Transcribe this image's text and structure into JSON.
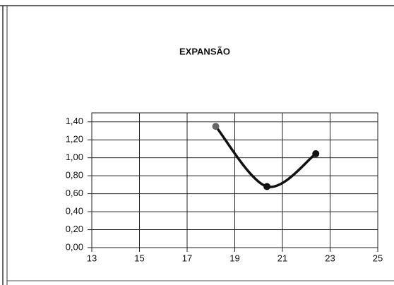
{
  "chart_data": {
    "type": "line",
    "title": "EXPANSÃO",
    "x": [
      18.2,
      20.35,
      22.4
    ],
    "series": [
      {
        "color": "#111111",
        "values": [
          1.35,
          0.68,
          1.045
        ]
      }
    ],
    "xlim": [
      13,
      25
    ],
    "xticks": [
      13,
      15,
      17,
      19,
      21,
      23,
      25
    ],
    "ylim": [
      0,
      1.5
    ],
    "yticks": [
      {
        "value": 0,
        "label": "0,00"
      },
      {
        "value": 0.2,
        "label": "0,20"
      },
      {
        "value": 0.4,
        "label": "0,40"
      },
      {
        "value": 0.6,
        "label": "0,60"
      },
      {
        "value": 0.8,
        "label": "0,80"
      },
      {
        "value": 1.0,
        "label": "1,00"
      },
      {
        "value": 1.2,
        "label": "1,20"
      },
      {
        "value": 1.4,
        "label": "1,40"
      }
    ],
    "grid": true
  }
}
